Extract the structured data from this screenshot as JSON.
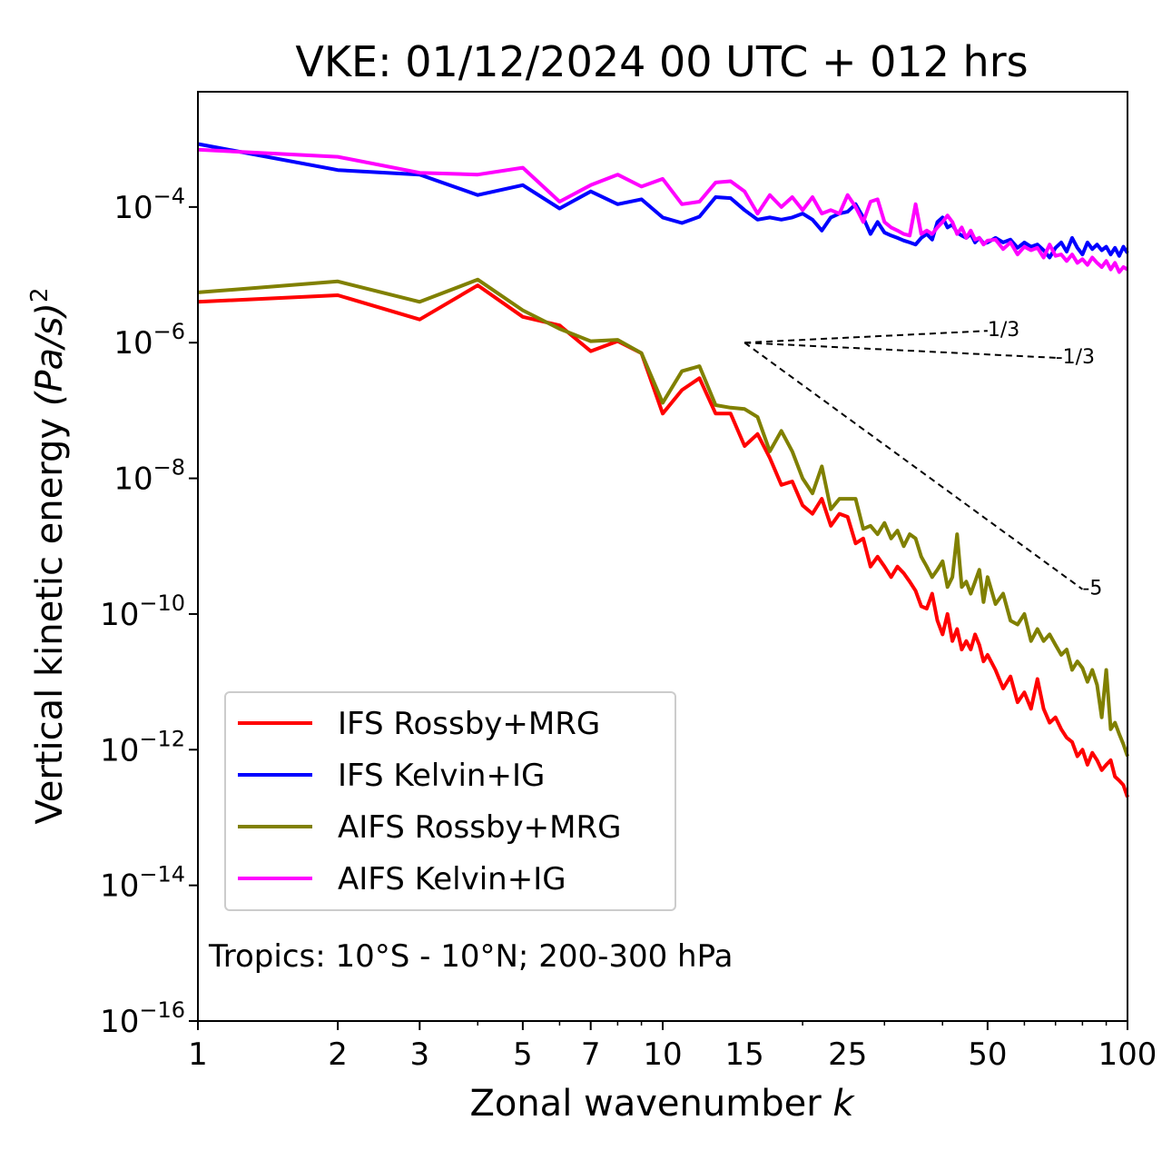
{
  "chart_data": {
    "type": "line",
    "title": "VKE: 01/12/2024 00 UTC + 012 hrs",
    "xlabel_text": "Zonal wavenumber ",
    "xlabel_var": "k",
    "ylabel_text": "Vertical kinetic energy ",
    "ylabel_var": "(Pa/s)",
    "ylabel_sup": "2",
    "xscale": "log",
    "yscale": "log",
    "xlim": [
      1,
      100
    ],
    "ylim": [
      1e-16,
      0.005
    ],
    "xticks": [
      1,
      2,
      3,
      5,
      7,
      10,
      15,
      25,
      50,
      100
    ],
    "xtick_labels": [
      "1",
      "2",
      "3",
      "5",
      "7",
      "10",
      "15",
      "25",
      "50",
      "100"
    ],
    "yticks": [
      {
        "value": 0.0001,
        "base": "10",
        "exp": "−4"
      },
      {
        "value": 1e-06,
        "base": "10",
        "exp": "−6"
      },
      {
        "value": 1e-08,
        "base": "10",
        "exp": "−8"
      },
      {
        "value": 1e-10,
        "base": "10",
        "exp": "−10"
      },
      {
        "value": 1e-12,
        "base": "10",
        "exp": "−12"
      },
      {
        "value": 1e-14,
        "base": "10",
        "exp": "−14"
      },
      {
        "value": 1e-16,
        "base": "10",
        "exp": "−16"
      }
    ],
    "grid": false,
    "legend_position": "lower-left",
    "annotation": "Tropics: 10°S - 10°N; 200-300 hPa",
    "reference_slopes": [
      {
        "label": "1/3",
        "x0": 15,
        "y0": 1e-06,
        "x1": 50,
        "slope": 0.3333
      },
      {
        "label": "-1/3",
        "x0": 15,
        "y0": 1e-06,
        "x1": 70,
        "slope": -0.3333
      },
      {
        "label": "-5",
        "x0": 15,
        "y0": 1e-06,
        "x1": 80,
        "slope": -5
      }
    ],
    "series": [
      {
        "name": "IFS Rossby+MRG",
        "color": "#ff0000",
        "x": [
          1,
          2,
          3,
          4,
          5,
          6,
          7,
          8,
          9,
          10,
          11,
          12,
          13,
          14,
          15,
          16,
          17,
          18,
          19,
          20,
          21,
          22,
          23,
          24,
          25,
          26,
          27,
          28,
          29,
          30,
          31,
          32,
          33,
          34,
          35,
          36,
          37,
          38,
          39,
          40,
          41,
          42,
          43,
          44,
          45,
          46,
          47,
          48,
          49,
          50,
          52,
          54,
          56,
          58,
          60,
          62,
          64,
          66,
          68,
          70,
          72,
          74,
          76,
          78,
          80,
          82,
          84,
          86,
          88,
          90,
          92,
          94,
          96,
          98,
          100
        ],
        "y": [
          4e-06,
          5e-06,
          2.2e-06,
          7e-06,
          2.4e-06,
          1.8e-06,
          7.5e-07,
          1.05e-06,
          7e-07,
          9e-08,
          2e-07,
          3e-07,
          9e-08,
          9e-08,
          3e-08,
          4.5e-08,
          2e-08,
          8e-09,
          9e-09,
          4e-09,
          3e-09,
          5e-09,
          2e-09,
          3e-09,
          2.7e-09,
          1.1e-09,
          1.3e-09,
          5e-10,
          7e-10,
          5e-10,
          3.5e-10,
          5e-10,
          4e-10,
          3e-10,
          2.2e-10,
          1.3e-10,
          1.2e-10,
          2e-10,
          8e-11,
          5e-11,
          1e-10,
          4e-11,
          6e-11,
          3e-11,
          4e-11,
          3e-11,
          5e-11,
          3.5e-11,
          2e-11,
          2.5e-11,
          1.5e-11,
          8e-12,
          1.2e-11,
          5e-12,
          7e-12,
          4e-12,
          1.1e-11,
          4e-12,
          2.5e-12,
          3e-12,
          2e-12,
          1.5e-12,
          1.3e-12,
          8e-13,
          1e-12,
          6e-13,
          9e-13,
          7e-13,
          5e-13,
          6e-13,
          7e-13,
          4e-13,
          3.5e-13,
          3e-13,
          2e-13
        ]
      },
      {
        "name": "IFS Kelvin+IG",
        "color": "#0000ff",
        "x": [
          1,
          2,
          3,
          4,
          5,
          6,
          7,
          8,
          9,
          10,
          11,
          12,
          13,
          14,
          15,
          16,
          17,
          18,
          19,
          20,
          21,
          22,
          23,
          24,
          25,
          26,
          27,
          28,
          29,
          30,
          31,
          32,
          33,
          34,
          35,
          36,
          37,
          38,
          39,
          40,
          41,
          42,
          43,
          44,
          45,
          46,
          47,
          48,
          49,
          50,
          52,
          54,
          56,
          58,
          60,
          62,
          64,
          66,
          68,
          70,
          72,
          74,
          76,
          78,
          80,
          82,
          84,
          86,
          88,
          90,
          92,
          94,
          96,
          98,
          100
        ],
        "y": [
          0.00085,
          0.00035,
          0.0003,
          0.00015,
          0.00021,
          9.5e-05,
          0.00017,
          0.00011,
          0.00013,
          7e-05,
          5.8e-05,
          7.2e-05,
          0.00014,
          0.000135,
          9e-05,
          6.5e-05,
          7e-05,
          6.5e-05,
          7e-05,
          8e-05,
          6.5e-05,
          4.5e-05,
          7e-05,
          8e-05,
          8.5e-05,
          0.00011,
          7e-05,
          4e-05,
          6e-05,
          4.2e-05,
          3.8e-05,
          3.5e-05,
          3.2e-05,
          3e-05,
          2.8e-05,
          3.5e-05,
          4e-05,
          3.3e-05,
          6e-05,
          7e-05,
          5e-05,
          5.5e-05,
          4.2e-05,
          3.8e-05,
          3.5e-05,
          4e-05,
          3e-05,
          3.5e-05,
          2.9e-05,
          3e-05,
          3.5e-05,
          3e-05,
          3.3e-05,
          2.5e-05,
          3e-05,
          2.6e-05,
          2.8e-05,
          2.3e-05,
          1.8e-05,
          2.5e-05,
          3e-05,
          2.2e-05,
          3.5e-05,
          2.5e-05,
          2e-05,
          3e-05,
          2.4e-05,
          2.8e-05,
          2.3e-05,
          2.6e-05,
          2e-05,
          2.5e-05,
          1.9e-05,
          2.6e-05,
          2.1e-05
        ]
      },
      {
        "name": "AIFS Rossby+MRG",
        "color": "#808000",
        "x": [
          1,
          2,
          3,
          4,
          5,
          6,
          7,
          8,
          9,
          10,
          11,
          12,
          13,
          14,
          15,
          16,
          17,
          18,
          19,
          20,
          21,
          22,
          23,
          24,
          25,
          26,
          27,
          28,
          29,
          30,
          31,
          32,
          33,
          34,
          35,
          36,
          37,
          38,
          39,
          40,
          41,
          42,
          43,
          44,
          45,
          46,
          47,
          48,
          49,
          50,
          52,
          54,
          56,
          58,
          60,
          62,
          64,
          66,
          68,
          70,
          72,
          74,
          76,
          78,
          80,
          82,
          84,
          86,
          88,
          90,
          92,
          94,
          96,
          98,
          100
        ],
        "y": [
          5.5e-06,
          8e-06,
          4e-06,
          8.5e-06,
          3e-06,
          1.6e-06,
          1.05e-06,
          1.1e-06,
          7e-07,
          1.3e-07,
          3.8e-07,
          4.5e-07,
          1.2e-07,
          1.1e-07,
          1.05e-07,
          8e-08,
          2.5e-08,
          5e-08,
          2.5e-08,
          1e-08,
          6e-09,
          1.5e-08,
          3.5e-09,
          5e-09,
          5e-09,
          5e-09,
          1.8e-09,
          2e-09,
          1.5e-09,
          2.2e-09,
          1.3e-09,
          1.7e-09,
          1e-09,
          1.5e-09,
          1.3e-09,
          7e-10,
          5e-10,
          3.5e-10,
          4.5e-10,
          6e-10,
          2.5e-10,
          3.5e-10,
          1.5e-09,
          2.5e-10,
          3e-10,
          2e-10,
          3e-10,
          4.5e-10,
          1.5e-10,
          3.5e-10,
          1.4e-10,
          2e-10,
          8e-11,
          7e-11,
          1e-10,
          4e-11,
          6e-11,
          4e-11,
          5e-11,
          3.5e-11,
          2.5e-11,
          3e-11,
          1.5e-11,
          2e-11,
          1.6e-11,
          1e-11,
          1.5e-11,
          9e-12,
          3e-12,
          1.5e-11,
          2e-12,
          2.5e-12,
          1.7e-12,
          1.2e-12,
          8e-13
        ]
      },
      {
        "name": "AIFS Kelvin+IG",
        "color": "#ff00ff",
        "x": [
          1,
          2,
          3,
          4,
          5,
          6,
          7,
          8,
          9,
          10,
          11,
          12,
          13,
          14,
          15,
          16,
          17,
          18,
          19,
          20,
          21,
          22,
          23,
          24,
          25,
          26,
          27,
          28,
          29,
          30,
          31,
          32,
          33,
          34,
          35,
          36,
          37,
          38,
          39,
          40,
          41,
          42,
          43,
          44,
          45,
          46,
          47,
          48,
          49,
          50,
          52,
          54,
          56,
          58,
          60,
          62,
          64,
          66,
          68,
          70,
          72,
          74,
          76,
          78,
          80,
          82,
          84,
          86,
          88,
          90,
          92,
          94,
          96,
          98,
          100
        ],
        "y": [
          0.0007,
          0.00055,
          0.00032,
          0.0003,
          0.00038,
          0.00012,
          0.00021,
          0.0003,
          0.0002,
          0.00026,
          0.00011,
          0.00012,
          0.00023,
          0.00024,
          0.00017,
          8e-05,
          0.00015,
          0.0001,
          0.00014,
          9e-05,
          0.00014,
          8e-05,
          9e-05,
          8e-05,
          0.00015,
          0.0001,
          6e-05,
          0.00012,
          0.00013,
          6e-05,
          5e-05,
          4.5e-05,
          4e-05,
          3.8e-05,
          0.00011,
          4e-05,
          4.5e-05,
          4e-05,
          5e-05,
          6e-05,
          7.5e-05,
          6e-05,
          4e-05,
          5e-05,
          3.5e-05,
          4.5e-05,
          3.3e-05,
          3.5e-05,
          2.8e-05,
          3.2e-05,
          3.3e-05,
          2.4e-05,
          3e-05,
          2e-05,
          2.6e-05,
          2.3e-05,
          2.5e-05,
          1.8e-05,
          2.8e-05,
          1.9e-05,
          2e-05,
          1.6e-05,
          2e-05,
          1.5e-05,
          1.7e-05,
          1.4e-05,
          1.8e-05,
          1.5e-05,
          1.3e-05,
          1.6e-05,
          1.2e-05,
          1.5e-05,
          1.1e-05,
          1.3e-05,
          1.2e-05
        ]
      }
    ]
  }
}
